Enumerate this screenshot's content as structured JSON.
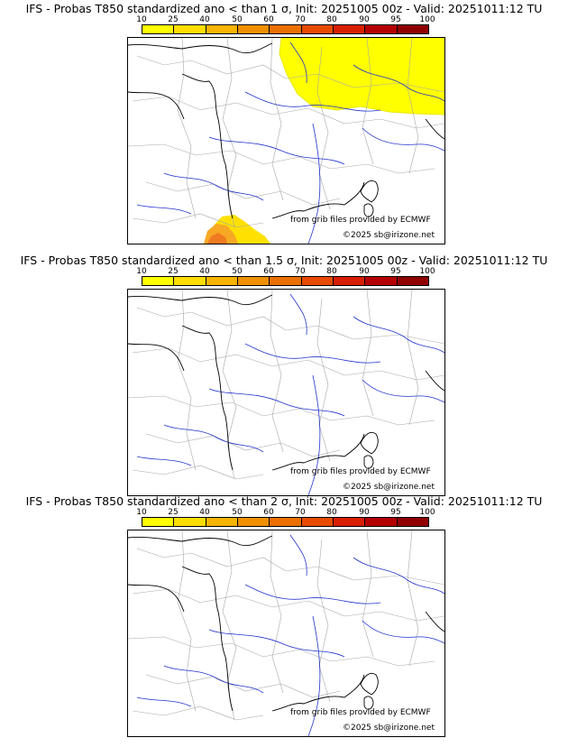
{
  "colorbar": {
    "ticks": [
      "10",
      "25",
      "40",
      "50",
      "60",
      "70",
      "80",
      "90",
      "95",
      "100"
    ],
    "colors": [
      "#ffff00",
      "#ffdd00",
      "#f8b400",
      "#f09000",
      "#eb7000",
      "#e84a00",
      "#d81e00",
      "#b40000",
      "#900000"
    ]
  },
  "panels": [
    {
      "title": "IFS - Probas T850  standardized ano < than 1 σ, Init: 20251005 00z - Valid: 20251011:12 TU",
      "credit_source": "from grib files provided by ECMWF",
      "credit_copyright": "©2025 sb@irizone.net",
      "probability_areas": [
        {
          "region": "north-east (Belgium, Germany, Luxembourg, Netherlands)",
          "probability_range": "10-25",
          "color": "#ffff00"
        },
        {
          "region": "Pyrenees / Catalonia",
          "probability_range": "10-70",
          "color": "#f09000"
        }
      ]
    },
    {
      "title": "IFS - Probas T850  standardized ano < than 1.5 σ, Init: 20251005 00z - Valid: 20251011:12 TU",
      "credit_source": "from grib files provided by ECMWF",
      "credit_copyright": "©2025 sb@irizone.net",
      "probability_areas": []
    },
    {
      "title": "IFS - Probas T850  standardized ano < than 2 σ, Init: 20251005 00z - Valid: 20251011:12 TU",
      "credit_source": "from grib files provided by ECMWF",
      "credit_copyright": "©2025 sb@irizone.net",
      "probability_areas": []
    }
  ]
}
